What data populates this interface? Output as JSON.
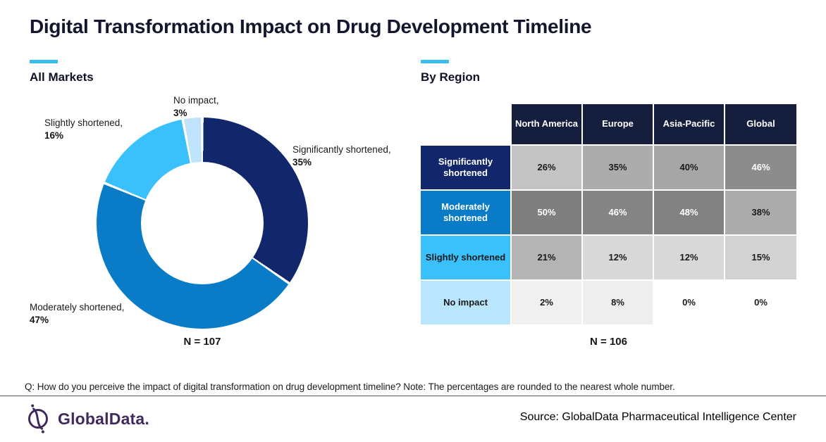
{
  "title": "Digital Transformation Impact on Drug Development Timeline",
  "sections": {
    "left": {
      "label": "All Markets"
    },
    "right": {
      "label": "By Region"
    }
  },
  "donut_labels": [
    {
      "line1": "Significantly shortened,",
      "line2": "35%"
    },
    {
      "line1": "Moderately shortened,",
      "line2": "47%"
    },
    {
      "line1": "Slightly shortened,",
      "line2": "16%"
    },
    {
      "line1": "No impact,",
      "line2": "3%"
    }
  ],
  "chart_data": [
    {
      "type": "pie",
      "subtype": "donut",
      "title": "All Markets",
      "labels": [
        "Significantly shortened",
        "Moderately shortened",
        "Slightly shortened",
        "No impact"
      ],
      "values": [
        35,
        47,
        16,
        3
      ],
      "colors": [
        "#12276B",
        "#0A7CC7",
        "#3AC1FC",
        "#BFE3FA"
      ],
      "start_angle_deg": 0,
      "direction": "clockwise",
      "sample_size": "N = 107"
    },
    {
      "type": "table",
      "title": "By Region",
      "columns": [
        "North America",
        "Europe",
        "Asia-Pacific",
        "Global"
      ],
      "rows": [
        {
          "label": "Significantly shortened",
          "values": [
            "26%",
            "35%",
            "40%",
            "46%"
          ]
        },
        {
          "label": "Moderately shortened",
          "values": [
            "50%",
            "46%",
            "48%",
            "38%"
          ]
        },
        {
          "label": "Slightly shortened",
          "values": [
            "21%",
            "12%",
            "12%",
            "15%"
          ]
        },
        {
          "label": "No impact",
          "values": [
            "2%",
            "8%",
            "0%",
            "0%"
          ]
        }
      ],
      "sample_size": "N = 106",
      "styles": {
        "header_bg": "#151F3D",
        "header_fg": "#FFFFFF",
        "row_label_bg": [
          "#12276B",
          "#0A7CC7",
          "#3AC1FC",
          "#B9E5FD"
        ],
        "cell_bg": [
          [
            "#C3C3C3",
            "#ACACAC",
            "#A6A6A6",
            "#8C8C8C"
          ],
          [
            "#7F7F7F",
            "#848484",
            "#818181",
            "#ACACAC"
          ],
          [
            "#B4B4B4",
            "#D8D8D8",
            "#D8D8D8",
            "#D2D2D2"
          ],
          [
            "#F0F0F0",
            "#EEEEEE",
            "#FFFFFF",
            "#FFFFFF"
          ]
        ]
      }
    }
  ],
  "footnote": "Q: How do you perceive the impact of digital transformation on drug development timeline? Note: The percentages are rounded to the nearest whole number.",
  "branding": {
    "logo_text": "GlobalData.",
    "logo_color": "#3F2A5E"
  },
  "source": "Source: GlobalData Pharmaceutical Intelligence Center"
}
